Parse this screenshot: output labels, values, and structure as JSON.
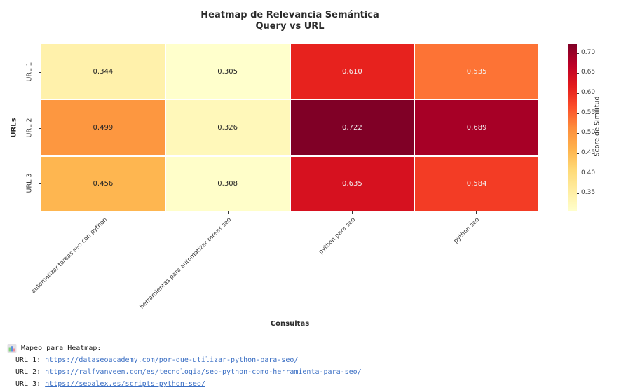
{
  "figure": {
    "title_line1": "Heatmap de Relevancia Semántica",
    "title_line2": "Query vs URL"
  },
  "chart_data": {
    "type": "heatmap",
    "title": "Heatmap de Relevancia Semántica — Query vs URL",
    "x_categories": [
      "automatizar tareas seo con python",
      "herramientas para automatizar tareas seo",
      "python para seo",
      "python seo"
    ],
    "y_categories": [
      "URL 1",
      "URL 2",
      "URL 3"
    ],
    "xlabel": "Consultas",
    "ylabel": "URLs",
    "values": [
      [
        0.344,
        0.305,
        0.61,
        0.535
      ],
      [
        0.499,
        0.326,
        0.722,
        0.689
      ],
      [
        0.456,
        0.308,
        0.635,
        0.584
      ]
    ],
    "labels": [
      [
        "0.344",
        "0.305",
        "0.610",
        "0.535"
      ],
      [
        "0.499",
        "0.326",
        "0.722",
        "0.689"
      ],
      [
        "0.456",
        "0.308",
        "0.635",
        "0.584"
      ]
    ],
    "cell_colors": [
      [
        "#fff1ab",
        "#ffffcc",
        "#e7221e",
        "#fd7335"
      ],
      [
        "#fd9740",
        "#fff8ba",
        "#800026",
        "#a70026"
      ],
      [
        "#feb650",
        "#fffec9",
        "#d6111f",
        "#f33c25"
      ]
    ],
    "cell_text_colors": [
      [
        "#262626",
        "#262626",
        "#f2f2f2",
        "#f2f2f2"
      ],
      [
        "#262626",
        "#262626",
        "#f2f2f2",
        "#f2f2f2"
      ],
      [
        "#262626",
        "#262626",
        "#f2f2f2",
        "#f2f2f2"
      ]
    ],
    "colormap": "YlOrRd",
    "grid_gap_color": "#ffffff",
    "colorbar": {
      "label": "Score de Similitud",
      "tick_labels": [
        "0.70",
        "0.65",
        "0.60",
        "0.55",
        "0.50",
        "0.45",
        "0.40",
        "0.35"
      ],
      "ticks": [
        0.7,
        0.65,
        0.6,
        0.55,
        0.5,
        0.45,
        0.4,
        0.35
      ],
      "vmin": 0.305,
      "vmax": 0.722,
      "gradient_top_to_bottom": [
        "#800026",
        "#bd0026",
        "#e31a1c",
        "#fc4e2a",
        "#fd8d3c",
        "#feb24c",
        "#fed976",
        "#ffeda0",
        "#ffffcc"
      ]
    }
  },
  "console": {
    "heading": "Mapeo para Heatmap:",
    "icon": "bar-chart-emoji",
    "entries": [
      {
        "label": "URL 1:",
        "url": "https://dataseoacademy.com/por-que-utilizar-python-para-seo/"
      },
      {
        "label": "URL 2:",
        "url": "https://ralfvanveen.com/es/tecnologia/seo-python-como-herramienta-para-seo/"
      },
      {
        "label": "URL 3:",
        "url": "https://seoalex.es/scripts-python-seo/"
      }
    ],
    "link_color": "#3b6fc4",
    "text_color": "#1a1a1a"
  }
}
